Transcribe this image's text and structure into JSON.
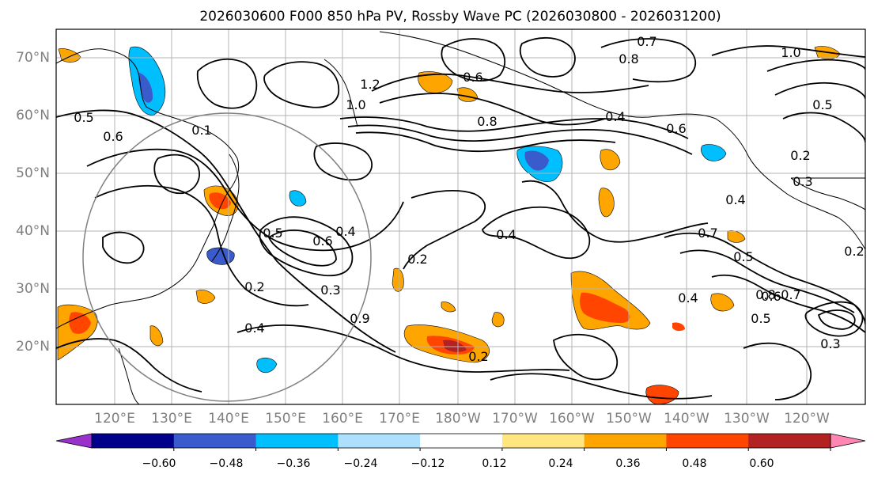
{
  "title": "2026030600 F000 850 hPa PV, Rossby Wave PC (2026030800 - 2026031200)",
  "lat_labels": [
    "70°N",
    "60°N",
    "50°N",
    "40°N",
    "30°N",
    "20°N"
  ],
  "lon_labels": [
    "120°E",
    "130°E",
    "140°E",
    "150°E",
    "160°E",
    "170°E",
    "180°W",
    "170°W",
    "160°W",
    "150°W",
    "140°W",
    "130°W",
    "120°W"
  ],
  "colorbar": {
    "labels": [
      "−0.60",
      "−0.48",
      "−0.36",
      "−0.24",
      "−0.12",
      "0.12",
      "0.24",
      "0.36",
      "0.48",
      "0.60"
    ],
    "colors": [
      "#9932CC",
      "#00008B",
      "#3A5BCC",
      "#00BFFF",
      "#ADDFFF",
      "#FFFFFF",
      "#FFE680",
      "#FFA500",
      "#FF4500",
      "#B22222",
      "#FF85B3"
    ]
  },
  "contour_labels": [
    {
      "text": "0.5"
    },
    {
      "text": "0.6"
    },
    {
      "text": "0.5"
    },
    {
      "text": "0.6"
    },
    {
      "text": "0.4"
    },
    {
      "text": "0.2"
    },
    {
      "text": "0.4"
    },
    {
      "text": "0.3"
    },
    {
      "text": "0.4"
    },
    {
      "text": "0.2"
    },
    {
      "text": "0.4"
    },
    {
      "text": "0.8"
    },
    {
      "text": "0.6"
    },
    {
      "text": "1.0"
    },
    {
      "text": "1.2"
    },
    {
      "text": "0.8"
    },
    {
      "text": "0.7"
    },
    {
      "text": "0.5"
    },
    {
      "text": "0.6"
    },
    {
      "text": "0.4"
    },
    {
      "text": "0.2"
    },
    {
      "text": "0.7"
    },
    {
      "text": "0.5"
    },
    {
      "text": "0.4"
    },
    {
      "text": "0.6"
    },
    {
      "text": "0.5"
    },
    {
      "text": "0.8"
    },
    {
      "text": "0.7"
    },
    {
      "text": "0.3"
    },
    {
      "text": "0.2"
    },
    {
      "text": "0.3"
    },
    {
      "text": "0.2"
    },
    {
      "text": "1.0"
    },
    {
      "text": "0.9"
    },
    {
      "text": "0.1"
    }
  ]
}
